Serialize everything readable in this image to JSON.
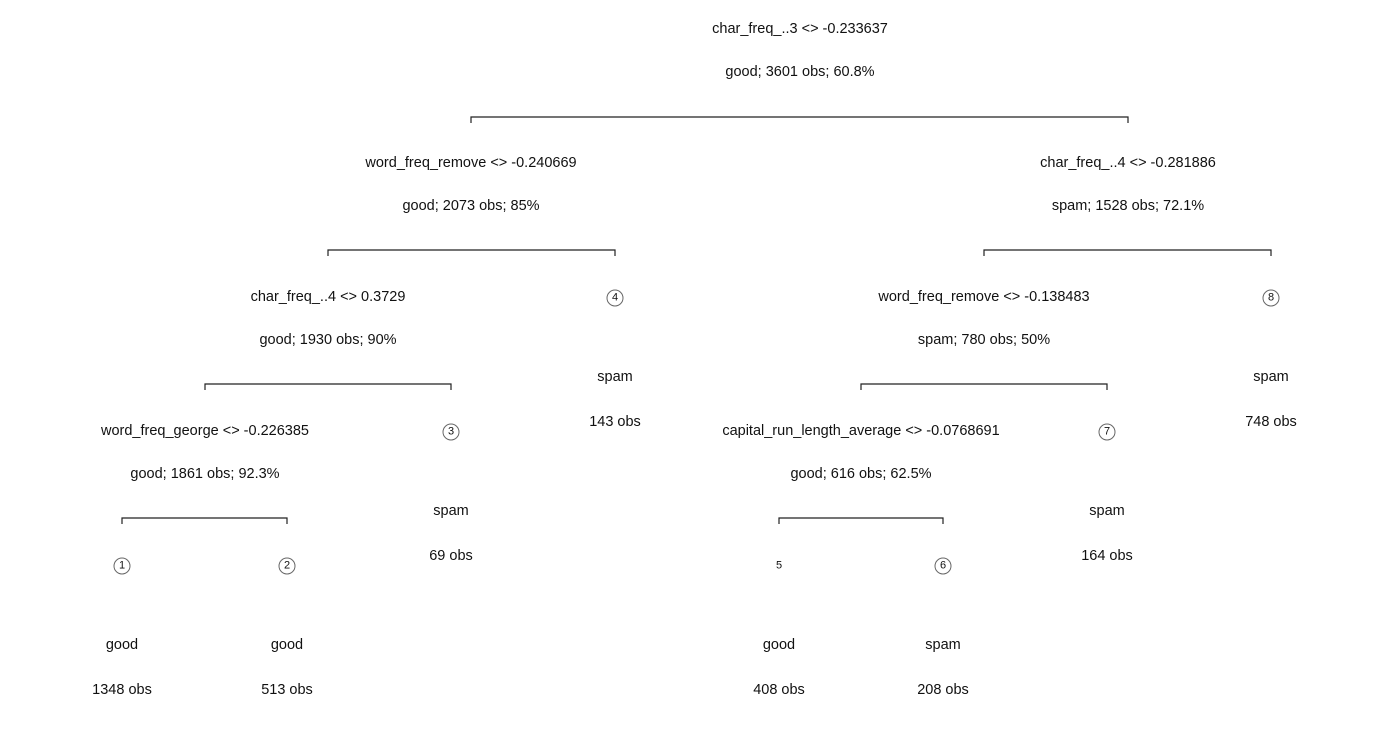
{
  "nodes": [
    {
      "id": "n0",
      "split": "char_freq_..3 <> -0.233637",
      "summary": "good; 3601 obs; 60.8%"
    },
    {
      "id": "n1",
      "split": "word_freq_remove <> -0.240669",
      "summary": "good; 2073 obs; 85%"
    },
    {
      "id": "n2",
      "split": "char_freq_..4 <> -0.281886",
      "summary": "spam; 1528 obs; 72.1%"
    },
    {
      "id": "n3",
      "split": "char_freq_..4 <> 0.3729",
      "summary": "good; 1930 obs; 90%"
    },
    {
      "id": "n4",
      "split": "word_freq_remove <> -0.138483",
      "summary": "spam; 780 obs; 50%"
    },
    {
      "id": "n5",
      "split": "word_freq_george <> -0.226385",
      "summary": "good; 1861 obs; 92.3%"
    },
    {
      "id": "n6",
      "split": "capital_run_length_average <> -0.0768691",
      "summary": "good; 616 obs; 62.5%"
    }
  ],
  "leaves": [
    {
      "number": "1",
      "class": "good",
      "obs": "1348 obs"
    },
    {
      "number": "2",
      "class": "good",
      "obs": "513 obs"
    },
    {
      "number": "3",
      "class": "spam",
      "obs": "69 obs"
    },
    {
      "number": "4",
      "class": "spam",
      "obs": "143 obs"
    },
    {
      "number": "5",
      "class": "good",
      "obs": "408 obs"
    },
    {
      "number": "6",
      "class": "spam",
      "obs": "208 obs"
    },
    {
      "number": "7",
      "class": "spam",
      "obs": "164 obs"
    },
    {
      "number": "8",
      "class": "spam",
      "obs": "748 obs"
    }
  ],
  "colors": {
    "line": "#222222",
    "text": "#111111",
    "leaf_circle": "#666666"
  }
}
